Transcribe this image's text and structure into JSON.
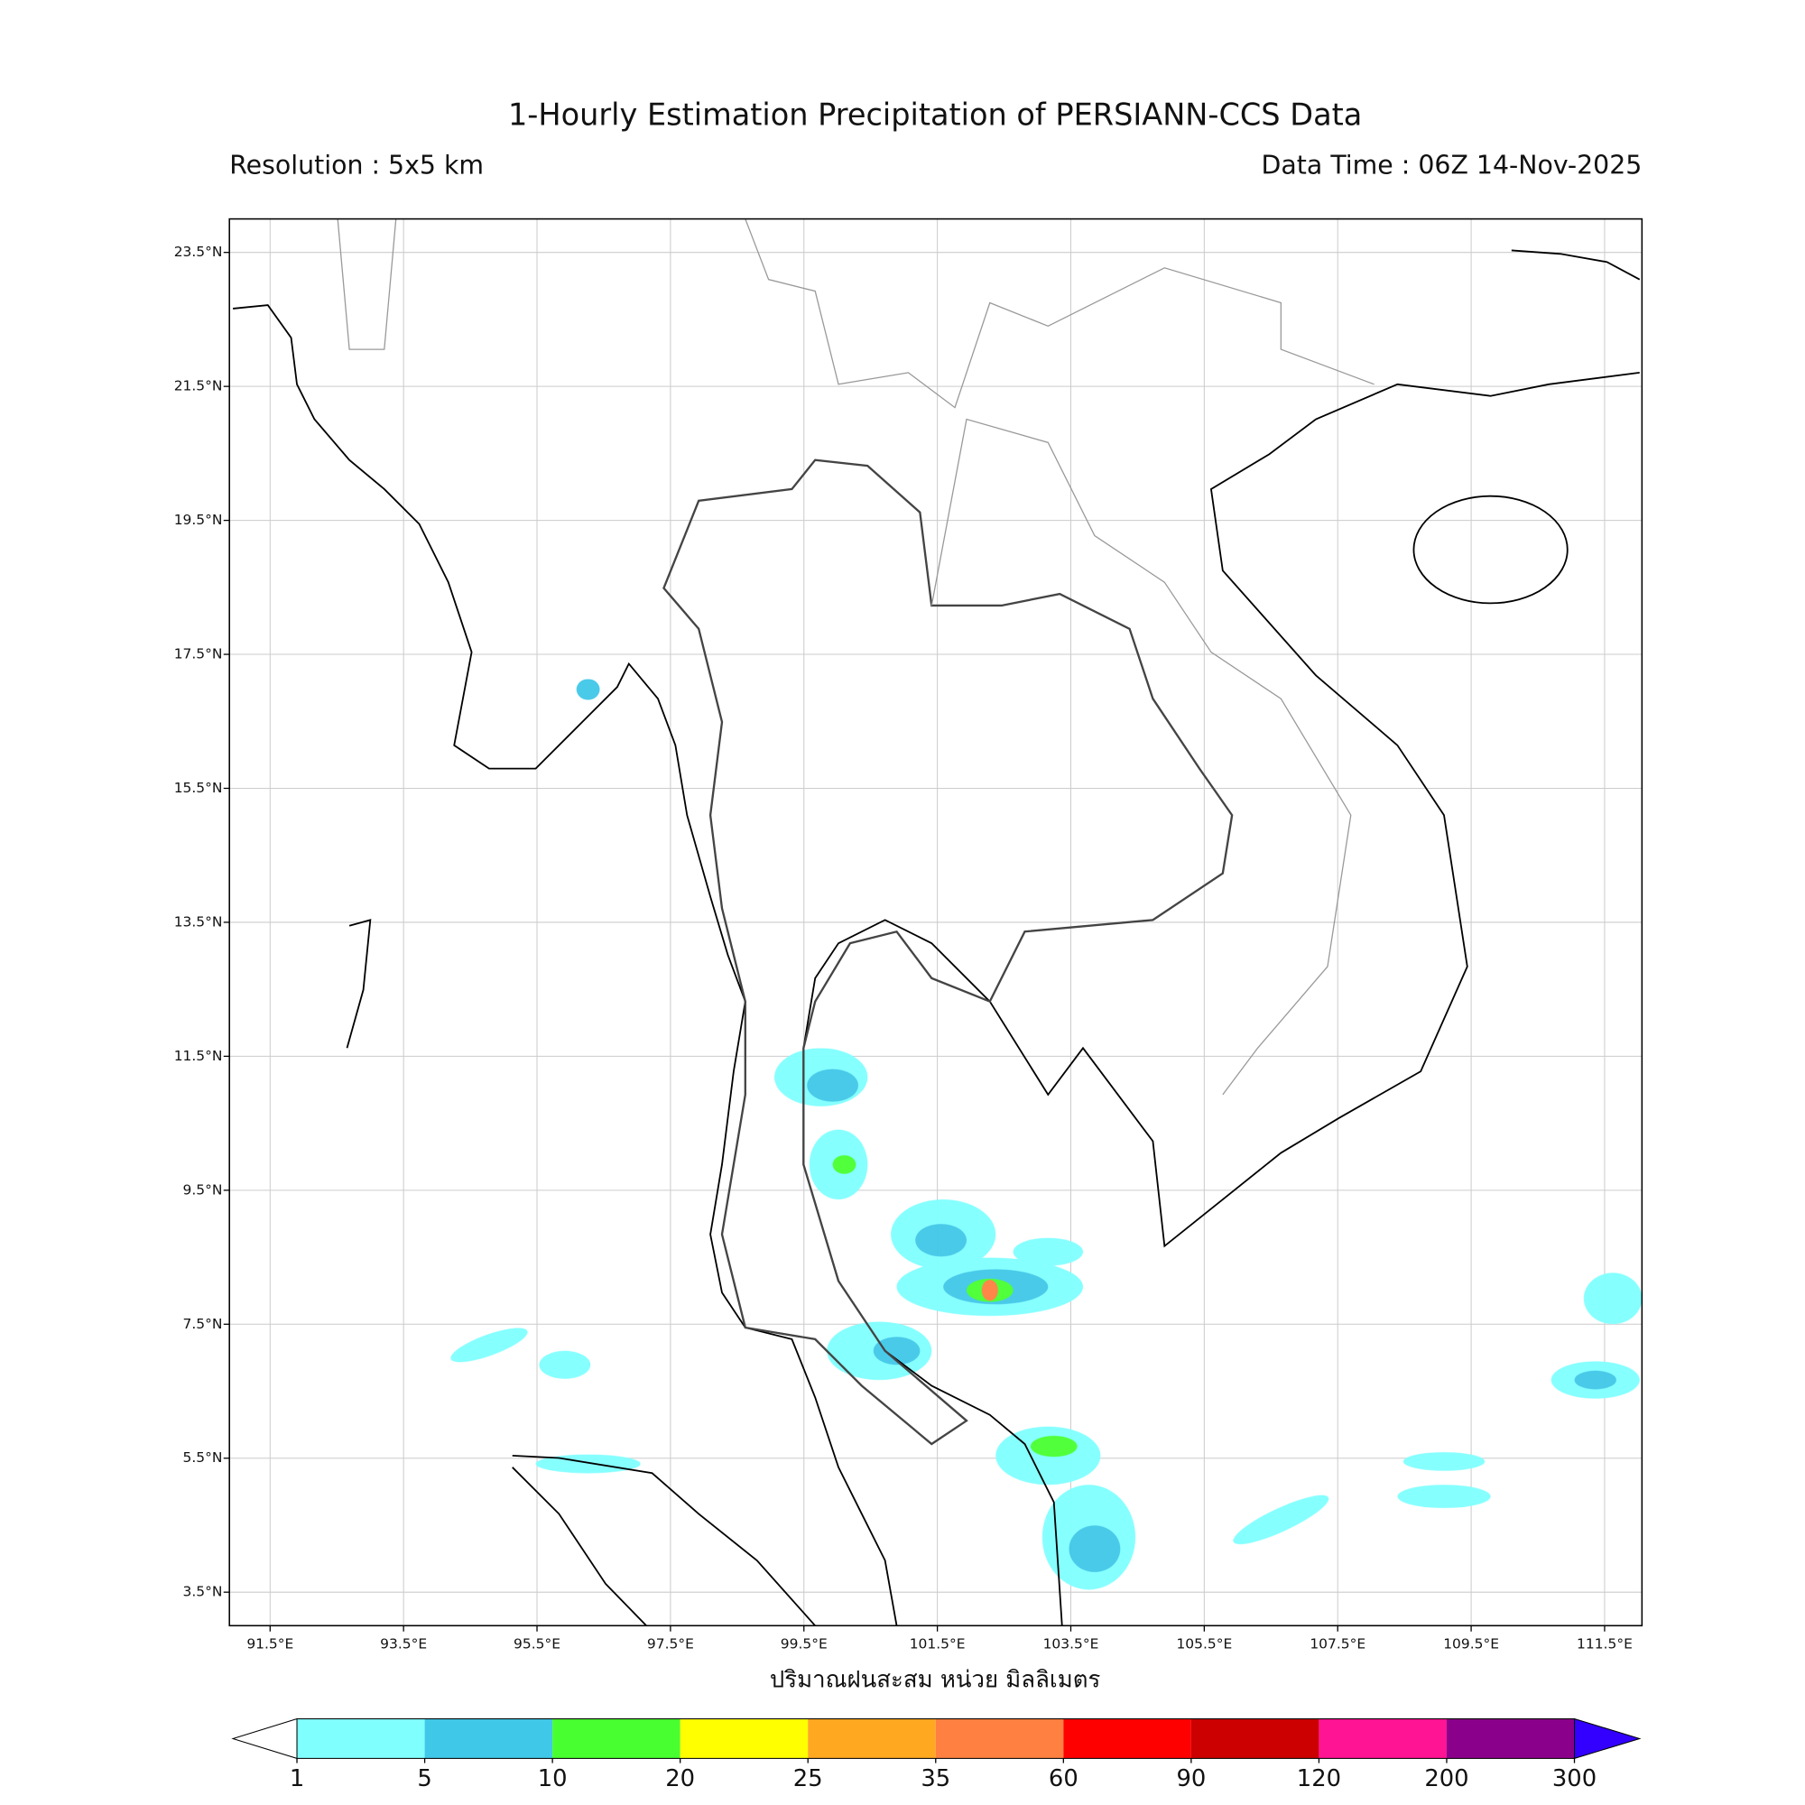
{
  "header": {
    "title": "1-Hourly Estimation Precipitation of PERSIANN-CCS Data",
    "resolution": "Resolution : 5x5 km",
    "data_time": "Data Time : 06Z 14-Nov-2025"
  },
  "map": {
    "lonlim": [
      90.89,
      112.06
    ],
    "latlim": [
      3.0,
      24.0
    ],
    "lon_ticks": [
      {
        "value": 91.5,
        "label": "91.5°E"
      },
      {
        "value": 93.5,
        "label": "93.5°E"
      },
      {
        "value": 95.5,
        "label": "95.5°E"
      },
      {
        "value": 97.5,
        "label": "97.5°E"
      },
      {
        "value": 99.5,
        "label": "99.5°E"
      },
      {
        "value": 101.5,
        "label": "101.5°E"
      },
      {
        "value": 103.5,
        "label": "103.5°E"
      },
      {
        "value": 105.5,
        "label": "105.5°E"
      },
      {
        "value": 107.5,
        "label": "107.5°E"
      },
      {
        "value": 109.5,
        "label": "109.5°E"
      },
      {
        "value": 111.5,
        "label": "111.5°E"
      }
    ],
    "lat_ticks": [
      {
        "value": 3.5,
        "label": "3.5°N"
      },
      {
        "value": 5.5,
        "label": "5.5°N"
      },
      {
        "value": 7.5,
        "label": "7.5°N"
      },
      {
        "value": 9.5,
        "label": "9.5°N"
      },
      {
        "value": 11.5,
        "label": "11.5°N"
      },
      {
        "value": 13.5,
        "label": "13.5°N"
      },
      {
        "value": 15.5,
        "label": "15.5°N"
      },
      {
        "value": 17.5,
        "label": "17.5°N"
      },
      {
        "value": 19.5,
        "label": "19.5°N"
      },
      {
        "value": 21.5,
        "label": "21.5°N"
      },
      {
        "value": 23.5,
        "label": "23.5°N"
      }
    ],
    "grid": true,
    "xlabel": "ปริมาณฝนสะสม หน่วย มิลลิเมตร"
  },
  "colorbar": {
    "levels": [
      1,
      5,
      10,
      20,
      25,
      35,
      60,
      90,
      120,
      200,
      300
    ],
    "colors": [
      "#80ffff",
      "#40c8e8",
      "#48ff30",
      "#ffff00",
      "#ffa820",
      "#ff8040",
      "#ff0000",
      "#cc0000",
      "#ff1493",
      "#8b008b"
    ],
    "under_color": "#ffffff",
    "over_color": "#3300ff"
  }
}
